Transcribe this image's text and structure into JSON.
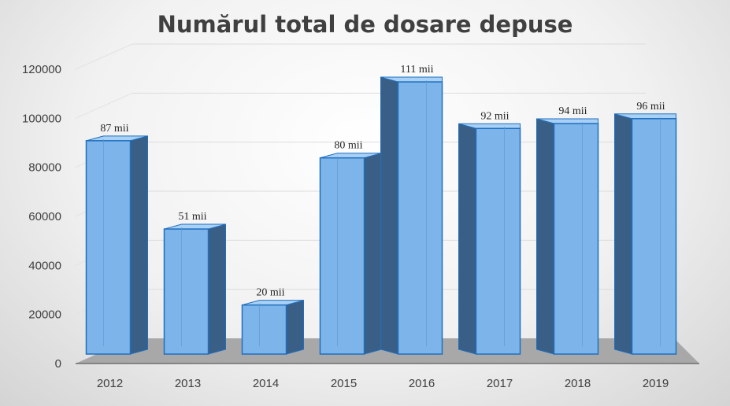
{
  "chart_data": {
    "type": "bar",
    "title": "Numărul total de dosare depuse",
    "categories": [
      "2012",
      "2013",
      "2014",
      "2015",
      "2016",
      "2017",
      "2018",
      "2019"
    ],
    "values": [
      87000,
      51000,
      20000,
      80000,
      111000,
      92000,
      94000,
      96000
    ],
    "data_labels": [
      "87 mii",
      "51 mii",
      "20 mii",
      "80 mii",
      "111 mii",
      "92 mii",
      "94 mii",
      "96 mii"
    ],
    "yticks": [
      "0",
      "20000",
      "40000",
      "60000",
      "80000",
      "100000",
      "120000"
    ],
    "ylim": [
      0,
      120000
    ],
    "xlabel": "",
    "ylabel": "",
    "grid": true,
    "legend": "none",
    "style": "3d-column",
    "colors": {
      "bar_front": "#7db5ea",
      "bar_side": "#3a5f86",
      "bar_top": "#a9d0f5",
      "bar_edge": "#1f6fbf",
      "floor": "#a8a8a8"
    }
  }
}
